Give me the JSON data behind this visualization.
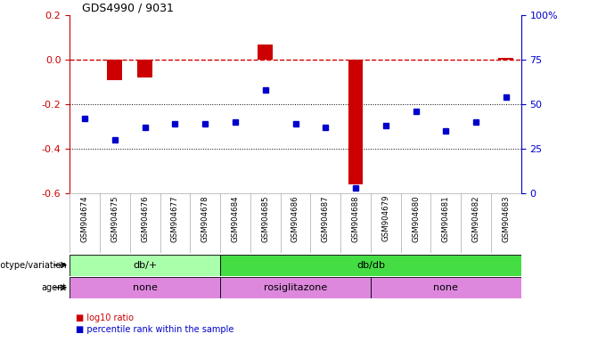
{
  "title": "GDS4990 / 9031",
  "samples": [
    "GSM904674",
    "GSM904675",
    "GSM904676",
    "GSM904677",
    "GSM904678",
    "GSM904684",
    "GSM904685",
    "GSM904686",
    "GSM904687",
    "GSM904688",
    "GSM904679",
    "GSM904680",
    "GSM904681",
    "GSM904682",
    "GSM904683"
  ],
  "log10_ratio": [
    0.0,
    -0.09,
    -0.08,
    0.0,
    0.0,
    0.0,
    0.07,
    0.0,
    0.0,
    -0.56,
    0.0,
    0.0,
    0.0,
    0.0,
    0.01
  ],
  "percentile": [
    42,
    30,
    37,
    39,
    39,
    40,
    58,
    39,
    37,
    3,
    38,
    46,
    35,
    40,
    54
  ],
  "left_ylim": [
    -0.6,
    0.2
  ],
  "right_ylim": [
    0,
    100
  ],
  "left_yticks": [
    0.2,
    0.0,
    -0.2,
    -0.4,
    -0.6
  ],
  "right_yticks": [
    100,
    75,
    50,
    25,
    0
  ],
  "hline_values": [
    -0.2,
    -0.4
  ],
  "red_color": "#cc0000",
  "blue_color": "#0000cc",
  "bar_width": 0.5,
  "genotype_groups": [
    {
      "label": "db/+",
      "start": 0,
      "end": 5,
      "color": "#aaffaa"
    },
    {
      "label": "db/db",
      "start": 5,
      "end": 15,
      "color": "#44dd44"
    }
  ],
  "agent_groups": [
    {
      "label": "none",
      "start": 0,
      "end": 5,
      "color": "#dd88dd"
    },
    {
      "label": "rosiglitazone",
      "start": 5,
      "end": 10,
      "color": "#dd88dd"
    },
    {
      "label": "none",
      "start": 10,
      "end": 15,
      "color": "#dd88dd"
    }
  ],
  "figsize": [
    6.8,
    3.84
  ],
  "dpi": 100
}
